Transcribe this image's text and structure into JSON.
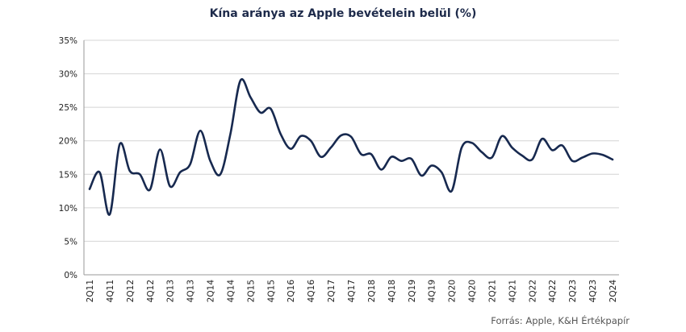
{
  "chart_data": {
    "type": "line",
    "title": "Kína aránya az Apple bevételein  belül  (%)",
    "source": "Forrás: Apple,  K&H Értékpapír",
    "ylim": [
      0,
      35
    ],
    "yticks": [
      "0%",
      "5%",
      "10%",
      "15%",
      "20%",
      "25%",
      "30%",
      "35%"
    ],
    "ytick_values": [
      0,
      5,
      10,
      15,
      20,
      25,
      30,
      35
    ],
    "grid": true,
    "line_color": "#17294f",
    "categories": [
      "2Q11",
      "3Q11",
      "4Q11",
      "1Q12",
      "2Q12",
      "3Q12",
      "4Q12",
      "1Q13",
      "2Q13",
      "3Q13",
      "4Q13",
      "1Q14",
      "2Q14",
      "3Q14",
      "4Q14",
      "1Q15",
      "2Q15",
      "3Q15",
      "4Q15",
      "1Q16",
      "2Q16",
      "3Q16",
      "4Q16",
      "1Q17",
      "2Q17",
      "3Q17",
      "4Q17",
      "1Q18",
      "2Q18",
      "3Q18",
      "4Q18",
      "1Q19",
      "2Q19",
      "3Q19",
      "4Q19",
      "1Q20",
      "2Q20",
      "3Q20",
      "4Q20",
      "1Q21",
      "2Q21",
      "3Q21",
      "4Q21",
      "1Q22",
      "2Q22",
      "3Q22",
      "4Q22",
      "1Q23",
      "2Q23",
      "3Q23",
      "4Q23",
      "1Q24",
      "2Q24"
    ],
    "xticks": [
      "2Q11",
      "4Q11",
      "2Q12",
      "4Q12",
      "2Q13",
      "4Q13",
      "2Q14",
      "4Q14",
      "2Q15",
      "4Q15",
      "2Q16",
      "4Q16",
      "2Q17",
      "4Q17",
      "2Q18",
      "4Q18",
      "2Q19",
      "4Q19",
      "2Q20",
      "4Q20",
      "2Q21",
      "4Q21",
      "2Q22",
      "4Q22",
      "2Q23",
      "4Q23",
      "2Q24"
    ],
    "series": [
      {
        "values": [
          12.8,
          15.3,
          9.0,
          19.5,
          15.5,
          15.0,
          12.7,
          18.7,
          13.2,
          15.3,
          16.5,
          21.5,
          17.0,
          15.0,
          21.0,
          29.0,
          26.5,
          24.2,
          24.8,
          21.0,
          18.8,
          20.7,
          20.0,
          17.6,
          19.0,
          20.8,
          20.6,
          18.0,
          18.0,
          15.7,
          17.6,
          17.0,
          17.3,
          14.8,
          16.3,
          15.3,
          12.5,
          19.0,
          19.7,
          18.3,
          17.5,
          20.7,
          19.0,
          17.8,
          17.2,
          20.3,
          18.6,
          19.3,
          17.0,
          17.5,
          18.1,
          17.9,
          17.2
        ]
      }
    ]
  }
}
